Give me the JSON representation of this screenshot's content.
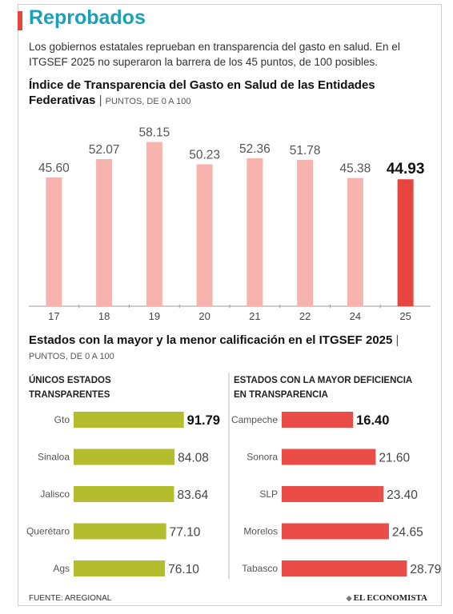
{
  "header": {
    "title": "Reprobados",
    "subtitle": "Los gobiernos estatales reprueban en transparencia del gasto en salud. En el ITGSEF 2025 no superaron la barrera de los 45 puntos, de 100 posibles."
  },
  "colors": {
    "title": "#1aa0b8",
    "accent": "#e8453f",
    "bar_light": "#f7b3ad",
    "bar_highlight": "#e8453f",
    "bar_green": "#b3bd2e",
    "bar_red": "#ea4c47"
  },
  "chart_data": [
    {
      "type": "bar",
      "title": "Índice de Transparencia del Gasto en Salud de las Entidades Federativas",
      "unit": "PUNTOS, DE 0 A 100",
      "categories": [
        "17",
        "18",
        "19",
        "20",
        "21",
        "22",
        "24",
        "25"
      ],
      "values": [
        45.6,
        52.07,
        58.15,
        50.23,
        52.36,
        51.78,
        45.38,
        44.93
      ],
      "value_labels": [
        "45.60",
        "52.07",
        "58.15",
        "50.23",
        "52.36",
        "51.78",
        "45.38",
        "44.93"
      ],
      "highlight": "25",
      "ylim": [
        0,
        60
      ],
      "grid": false
    },
    {
      "type": "bar",
      "orientation": "horizontal",
      "title": "Estados con la mayor y la menor calificación en el ITGSEF 2025",
      "unit": "PUNTOS, DE 0 A 100",
      "panels": [
        {
          "heading": "ÚNICOS ESTADOS TRANSPARENTES",
          "categories": [
            "Gto",
            "Sinaloa",
            "Jalisco",
            "Querétaro",
            "Ags"
          ],
          "values": [
            91.79,
            84.08,
            83.64,
            77.1,
            76.1
          ],
          "value_labels": [
            "91.79",
            "84.08",
            "83.64",
            "77.10",
            "76.10"
          ],
          "xlim": [
            0,
            100
          ]
        },
        {
          "heading": "ESTADOS CON LA MAYOR DEFICIENCIA EN TRANSPARENCIA",
          "categories": [
            "Campeche",
            "Sonora",
            "SLP",
            "Morelos",
            "Tabasco"
          ],
          "values": [
            16.4,
            21.6,
            23.4,
            24.65,
            28.79
          ],
          "value_labels": [
            "16.40",
            "21.60",
            "23.40",
            "24.65",
            "28.79"
          ],
          "xlim": [
            0,
            30
          ]
        }
      ]
    }
  ],
  "footer": {
    "source": "FUENTE: AREGIONAL",
    "logo": "EL ECONOMISTA"
  }
}
